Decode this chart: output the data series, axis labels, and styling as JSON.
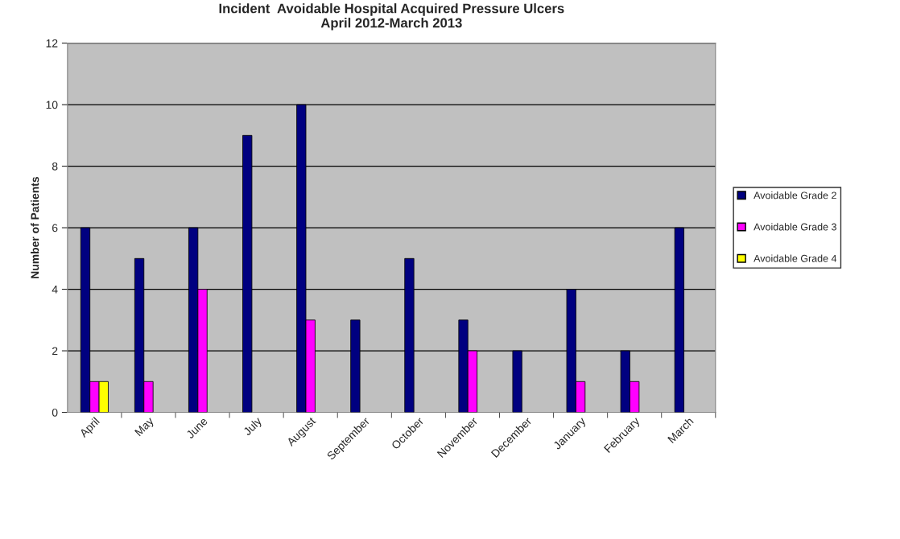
{
  "chart_data": {
    "type": "bar",
    "title": "Incident  Avoidable Hospital Acquired Pressure Ulcers\nApril 2012-March 2013",
    "ylabel": "Number of Patients",
    "categories": [
      "April",
      "May",
      "June",
      "July",
      "August",
      "September",
      "October",
      "November",
      "December",
      "January",
      "February",
      "March"
    ],
    "series": [
      {
        "name": "Avoidable Grade 2",
        "color": "#000080",
        "values": [
          6,
          5,
          6,
          9,
          10,
          3,
          5,
          3,
          2,
          4,
          2,
          6
        ]
      },
      {
        "name": "Avoidable Grade 3",
        "color": "#ff00ff",
        "values": [
          1,
          1,
          4,
          null,
          3,
          null,
          null,
          2,
          null,
          1,
          1,
          null
        ]
      },
      {
        "name": "Avoidable Grade 4",
        "color": "#ffff00",
        "values": [
          1,
          null,
          null,
          null,
          null,
          null,
          null,
          null,
          null,
          null,
          null,
          null
        ]
      }
    ],
    "ylim": [
      0,
      12
    ],
    "yticks": [
      0,
      2,
      4,
      6,
      8,
      10,
      12
    ],
    "grid": "y",
    "legend": "right"
  }
}
